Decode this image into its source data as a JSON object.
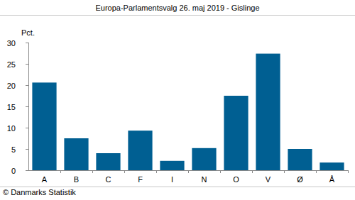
{
  "chart_data": {
    "type": "bar",
    "title": "Europa-Parlamentsvalg 26. maj 2019 - Gislinge",
    "y_label": "Pct.",
    "source": "© Danmarks Statistik",
    "categories": [
      "A",
      "B",
      "C",
      "F",
      "I",
      "N",
      "O",
      "V",
      "Ø",
      "Å"
    ],
    "values": [
      20.6,
      7.5,
      4.0,
      9.3,
      2.2,
      5.2,
      17.5,
      27.4,
      5.0,
      1.8
    ],
    "color": "#005f92",
    "ylim": [
      0,
      30
    ],
    "yticks": [
      0,
      5,
      10,
      15,
      20,
      25,
      30
    ],
    "grid": false
  }
}
